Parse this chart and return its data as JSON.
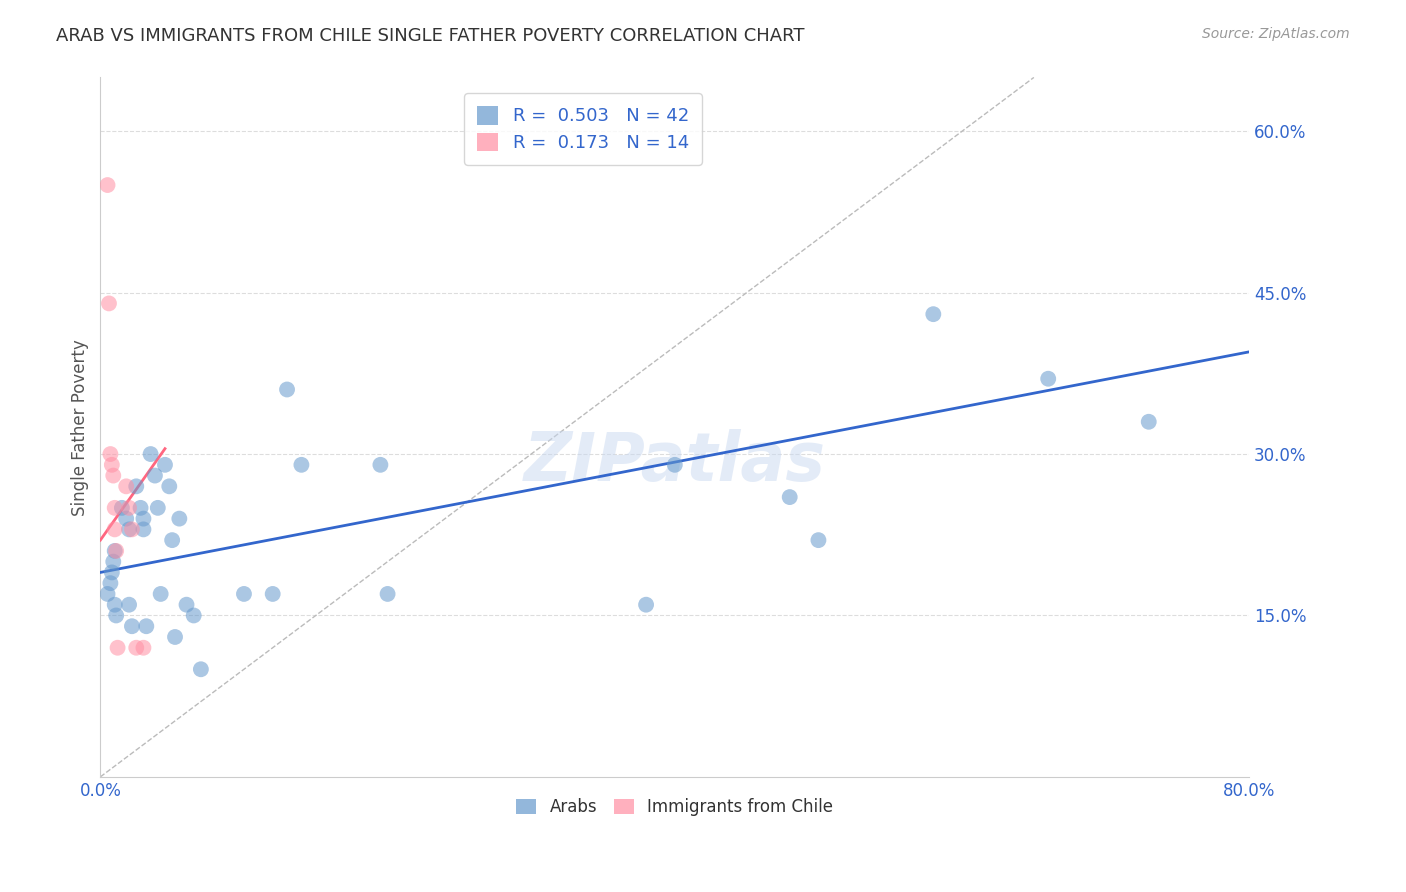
{
  "title": "ARAB VS IMMIGRANTS FROM CHILE SINGLE FATHER POVERTY CORRELATION CHART",
  "source": "Source: ZipAtlas.com",
  "ylabel": "Single Father Poverty",
  "xlim": [
    0,
    0.8
  ],
  "ylim": [
    0,
    0.65
  ],
  "xtick_pos": [
    0.0,
    0.1,
    0.2,
    0.3,
    0.4,
    0.5,
    0.6,
    0.7,
    0.8
  ],
  "xticklabels": [
    "0.0%",
    "",
    "",
    "",
    "",
    "",
    "",
    "",
    "80.0%"
  ],
  "yticks_right": [
    0.15,
    0.3,
    0.45,
    0.6
  ],
  "ytick_labels_right": [
    "15.0%",
    "30.0%",
    "45.0%",
    "60.0%"
  ],
  "legend_r_arab": "0.503",
  "legend_n_arab": "42",
  "legend_r_chile": "0.173",
  "legend_n_chile": "14",
  "arab_color": "#6699cc",
  "chile_color": "#ff8fa3",
  "arab_line_color": "#3366cc",
  "chile_line_color": "#ff6680",
  "grid_color": "#dddddd",
  "axis_label_color": "#3366cc",
  "title_color": "#333333",
  "watermark": "ZIPatlas",
  "arab_points_x": [
    0.005,
    0.007,
    0.008,
    0.009,
    0.01,
    0.01,
    0.011,
    0.015,
    0.018,
    0.02,
    0.02,
    0.022,
    0.025,
    0.028,
    0.03,
    0.03,
    0.032,
    0.035,
    0.038,
    0.04,
    0.042,
    0.045,
    0.048,
    0.05,
    0.052,
    0.055,
    0.06,
    0.065,
    0.07,
    0.1,
    0.12,
    0.13,
    0.14,
    0.195,
    0.2,
    0.38,
    0.4,
    0.48,
    0.5,
    0.58,
    0.66,
    0.73
  ],
  "arab_points_y": [
    0.17,
    0.18,
    0.19,
    0.2,
    0.21,
    0.16,
    0.15,
    0.25,
    0.24,
    0.23,
    0.16,
    0.14,
    0.27,
    0.25,
    0.24,
    0.23,
    0.14,
    0.3,
    0.28,
    0.25,
    0.17,
    0.29,
    0.27,
    0.22,
    0.13,
    0.24,
    0.16,
    0.15,
    0.1,
    0.17,
    0.17,
    0.36,
    0.29,
    0.29,
    0.17,
    0.16,
    0.29,
    0.26,
    0.22,
    0.43,
    0.37,
    0.33
  ],
  "chile_points_x": [
    0.005,
    0.006,
    0.007,
    0.008,
    0.009,
    0.01,
    0.01,
    0.011,
    0.012,
    0.018,
    0.02,
    0.022,
    0.025,
    0.03
  ],
  "chile_points_y": [
    0.55,
    0.44,
    0.3,
    0.29,
    0.28,
    0.25,
    0.23,
    0.21,
    0.12,
    0.27,
    0.25,
    0.23,
    0.12,
    0.12
  ],
  "arab_line_x": [
    0.0,
    0.8
  ],
  "arab_line_y": [
    0.19,
    0.395
  ],
  "chile_line_x": [
    0.0,
    0.045
  ],
  "chile_line_y": [
    0.22,
    0.305
  ]
}
